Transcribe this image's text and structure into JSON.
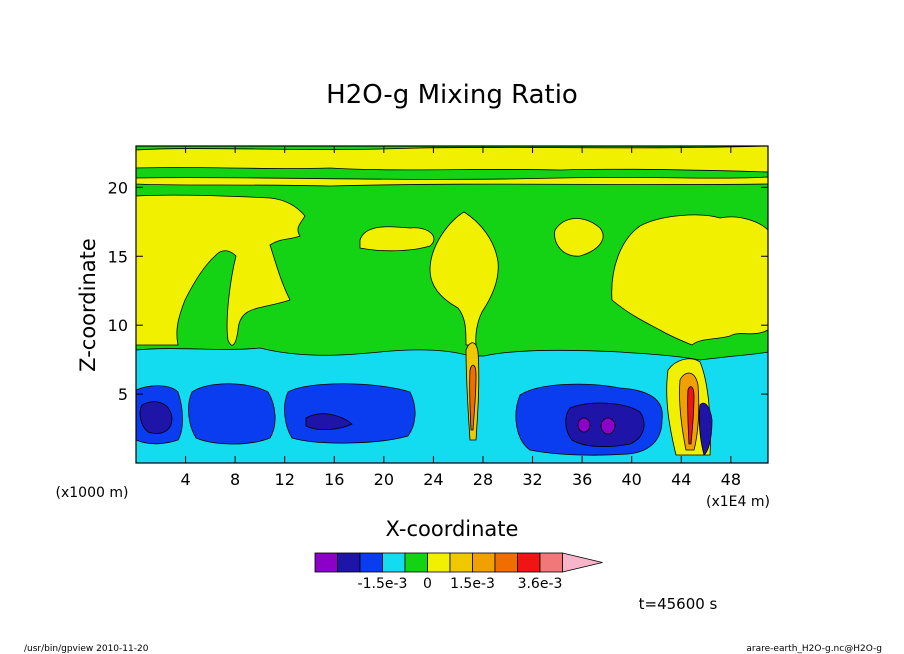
{
  "chart_data": {
    "type": "heatmap",
    "title": "H2O-g Mixing Ratio",
    "xlabel": "X-coordinate",
    "ylabel": "Z-coordinate",
    "x_unit_left": "(x1000 m)",
    "x_unit_right": "(x1E4 m)",
    "xlim": [
      0,
      51
    ],
    "ylim": [
      0,
      23
    ],
    "x_ticks": [
      4,
      8,
      12,
      16,
      20,
      24,
      28,
      32,
      36,
      40,
      44,
      48
    ],
    "y_ticks": [
      5,
      10,
      15,
      20
    ],
    "grid": false,
    "colorbar": {
      "labels": [
        "-1.5e-3",
        "0",
        "1.5e-3",
        "3.6e-3"
      ],
      "colors": [
        "#8c00c8",
        "#1e14a8",
        "#0a3cf0",
        "#14dcf0",
        "#14d214",
        "#f0f000",
        "#f0c800",
        "#f0a000",
        "#f06e00",
        "#f01414",
        "#f07878",
        "#f8b4c8"
      ]
    },
    "time_label": "t=45600 s",
    "regions_note": "contour field: cyan/blue low band z<8, yellow plumes near x=27 and x=44-46"
  },
  "footer": {
    "left": "/usr/bin/gpview  2010-11-20",
    "right": "arare-earth_H2O-g.nc@H2O-g"
  },
  "colors": {
    "violet": "#8c00c8",
    "navy": "#1e14a8",
    "blue": "#0a3cf0",
    "cyan": "#14dcf0",
    "green": "#14d214",
    "yellow": "#f0f000",
    "gold": "#f0c800",
    "orange": "#f0a000",
    "darkorange": "#f06e00",
    "red": "#f01414",
    "salmon": "#f07878",
    "pink": "#f8b4c8"
  }
}
